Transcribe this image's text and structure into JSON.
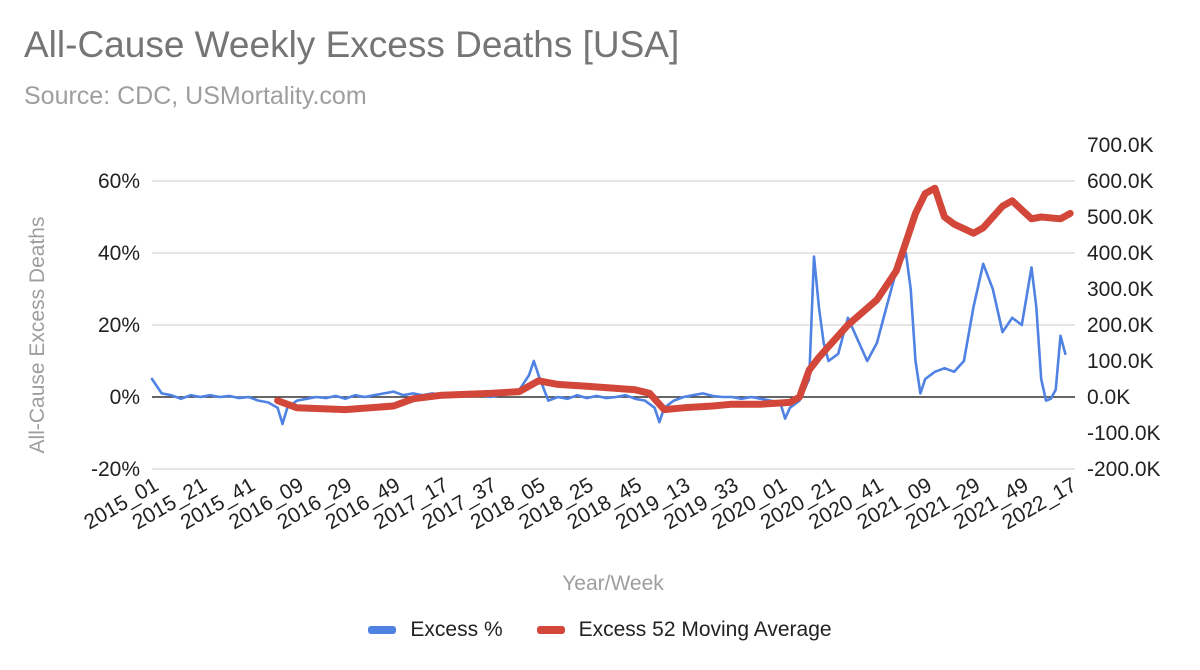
{
  "title": "All-Cause Weekly Excess Deaths [USA]",
  "subtitle": "Source: CDC, USMortality.com",
  "chart_data": {
    "type": "line",
    "title": "All-Cause Weekly Excess Deaths [USA]",
    "subtitle": "Source: CDC, USMortality.com",
    "xlabel": "Year/Week",
    "ylabel": "All-Cause Excess Deaths",
    "x_ticks": [
      "2015_01",
      "2015_21",
      "2015_41",
      "2016_09",
      "2016_29",
      "2016_49",
      "2017_17",
      "2017_37",
      "2018_05",
      "2018_25",
      "2018_45",
      "2019_13",
      "2019_33",
      "2020_01",
      "2020_21",
      "2020_41",
      "2021_09",
      "2021_29",
      "2021_49",
      "2022_17"
    ],
    "y_left": {
      "ticks": [
        "-20%",
        "0%",
        "20%",
        "40%",
        "60%"
      ],
      "range": [
        -20,
        70
      ],
      "unit": "%"
    },
    "y_right": {
      "ticks": [
        "-200.0K",
        "-100.0K",
        "0.0K",
        "100.0K",
        "200.0K",
        "300.0K",
        "400.0K",
        "500.0K",
        "600.0K",
        "700.0K"
      ],
      "range": [
        -200000,
        700000
      ]
    },
    "grid": true,
    "legend_position": "bottom",
    "series": [
      {
        "name": "Excess %",
        "axis": "left",
        "color": "#4f82e3",
        "points": [
          [
            "2015_01",
            5
          ],
          [
            "2015_05",
            1
          ],
          [
            "2015_09",
            0.5
          ],
          [
            "2015_13",
            -0.5
          ],
          [
            "2015_17",
            0.5
          ],
          [
            "2015_21",
            0
          ],
          [
            "2015_25",
            0.5
          ],
          [
            "2015_29",
            0
          ],
          [
            "2015_33",
            0.3
          ],
          [
            "2015_37",
            -0.3
          ],
          [
            "2015_41",
            0
          ],
          [
            "2015_45",
            -1
          ],
          [
            "2015_49",
            -1.5
          ],
          [
            "2016_01",
            -3
          ],
          [
            "2016_03",
            -7.5
          ],
          [
            "2016_05",
            -3
          ],
          [
            "2016_09",
            -1
          ],
          [
            "2016_13",
            -0.5
          ],
          [
            "2016_17",
            0
          ],
          [
            "2016_21",
            -0.3
          ],
          [
            "2016_25",
            0.3
          ],
          [
            "2016_29",
            -0.5
          ],
          [
            "2016_33",
            0.5
          ],
          [
            "2016_37",
            0
          ],
          [
            "2016_41",
            0.5
          ],
          [
            "2016_45",
            1
          ],
          [
            "2016_49",
            1.5
          ],
          [
            "2017_01",
            0.5
          ],
          [
            "2017_05",
            1
          ],
          [
            "2017_09",
            0.5
          ],
          [
            "2017_13",
            1
          ],
          [
            "2017_17",
            0.5
          ],
          [
            "2017_21",
            0
          ],
          [
            "2017_25",
            0.5
          ],
          [
            "2017_29",
            1
          ],
          [
            "2017_33",
            0.5
          ],
          [
            "2017_37",
            0
          ],
          [
            "2017_41",
            0.5
          ],
          [
            "2017_45",
            1
          ],
          [
            "2017_49",
            2
          ],
          [
            "2018_01",
            6
          ],
          [
            "2018_03",
            10
          ],
          [
            "2018_05",
            6
          ],
          [
            "2018_09",
            -1
          ],
          [
            "2018_13",
            0
          ],
          [
            "2018_17",
            -0.5
          ],
          [
            "2018_21",
            0.5
          ],
          [
            "2018_25",
            -0.3
          ],
          [
            "2018_29",
            0.3
          ],
          [
            "2018_33",
            -0.3
          ],
          [
            "2018_37",
            0
          ],
          [
            "2018_41",
            0.5
          ],
          [
            "2018_45",
            -0.5
          ],
          [
            "2018_49",
            -1
          ],
          [
            "2019_01",
            -3
          ],
          [
            "2019_03",
            -7
          ],
          [
            "2019_05",
            -3
          ],
          [
            "2019_09",
            -1
          ],
          [
            "2019_13",
            0
          ],
          [
            "2019_17",
            0.5
          ],
          [
            "2019_21",
            1
          ],
          [
            "2019_25",
            0.3
          ],
          [
            "2019_29",
            0
          ],
          [
            "2019_33",
            0
          ],
          [
            "2019_37",
            -0.5
          ],
          [
            "2019_41",
            0
          ],
          [
            "2019_45",
            -0.5
          ],
          [
            "2019_49",
            -1
          ],
          [
            "2020_01",
            -1.5
          ],
          [
            "2020_03",
            -6
          ],
          [
            "2020_05",
            -3
          ],
          [
            "2020_09",
            -1
          ],
          [
            "2020_13",
            5
          ],
          [
            "2020_15",
            39
          ],
          [
            "2020_17",
            25
          ],
          [
            "2020_19",
            15
          ],
          [
            "2020_21",
            10
          ],
          [
            "2020_25",
            12
          ],
          [
            "2020_29",
            22
          ],
          [
            "2020_33",
            16
          ],
          [
            "2020_37",
            10
          ],
          [
            "2020_41",
            15
          ],
          [
            "2020_45",
            25
          ],
          [
            "2020_49",
            35
          ],
          [
            "2021_01",
            40
          ],
          [
            "2021_03",
            30
          ],
          [
            "2021_05",
            10
          ],
          [
            "2021_07",
            1
          ],
          [
            "2021_09",
            5
          ],
          [
            "2021_13",
            7
          ],
          [
            "2021_17",
            8
          ],
          [
            "2021_21",
            7
          ],
          [
            "2021_25",
            10
          ],
          [
            "2021_29",
            25
          ],
          [
            "2021_33",
            37
          ],
          [
            "2021_37",
            30
          ],
          [
            "2021_41",
            18
          ],
          [
            "2021_45",
            22
          ],
          [
            "2021_49",
            20
          ],
          [
            "2022_01",
            36
          ],
          [
            "2022_03",
            25
          ],
          [
            "2022_05",
            5
          ],
          [
            "2022_07",
            -1
          ],
          [
            "2022_09",
            -0.5
          ],
          [
            "2022_11",
            2
          ],
          [
            "2022_13",
            17
          ],
          [
            "2022_15",
            12
          ]
        ]
      },
      {
        "name": "Excess 52 Moving Average",
        "axis": "right",
        "color": "#d2473a",
        "points": [
          [
            "2016_01",
            -10000
          ],
          [
            "2016_09",
            -30000
          ],
          [
            "2016_29",
            -35000
          ],
          [
            "2016_49",
            -25000
          ],
          [
            "2017_05",
            -5000
          ],
          [
            "2017_17",
            5000
          ],
          [
            "2017_37",
            10000
          ],
          [
            "2017_49",
            15000
          ],
          [
            "2018_05",
            45000
          ],
          [
            "2018_13",
            35000
          ],
          [
            "2018_25",
            30000
          ],
          [
            "2018_45",
            20000
          ],
          [
            "2018_51",
            10000
          ],
          [
            "2019_05",
            -35000
          ],
          [
            "2019_13",
            -30000
          ],
          [
            "2019_25",
            -25000
          ],
          [
            "2019_33",
            -20000
          ],
          [
            "2019_45",
            -20000
          ],
          [
            "2020_05",
            -15000
          ],
          [
            "2020_09",
            0
          ],
          [
            "2020_13",
            75000
          ],
          [
            "2020_17",
            110000
          ],
          [
            "2020_21",
            140000
          ],
          [
            "2020_29",
            200000
          ],
          [
            "2020_41",
            270000
          ],
          [
            "2020_49",
            350000
          ],
          [
            "2021_01",
            430000
          ],
          [
            "2021_05",
            510000
          ],
          [
            "2021_09",
            565000
          ],
          [
            "2021_13",
            580000
          ],
          [
            "2021_17",
            500000
          ],
          [
            "2021_21",
            480000
          ],
          [
            "2021_29",
            455000
          ],
          [
            "2021_33",
            470000
          ],
          [
            "2021_41",
            530000
          ],
          [
            "2021_45",
            545000
          ],
          [
            "2021_49",
            520000
          ],
          [
            "2022_01",
            495000
          ],
          [
            "2022_05",
            500000
          ],
          [
            "2022_13",
            495000
          ],
          [
            "2022_17",
            510000
          ]
        ]
      }
    ]
  }
}
